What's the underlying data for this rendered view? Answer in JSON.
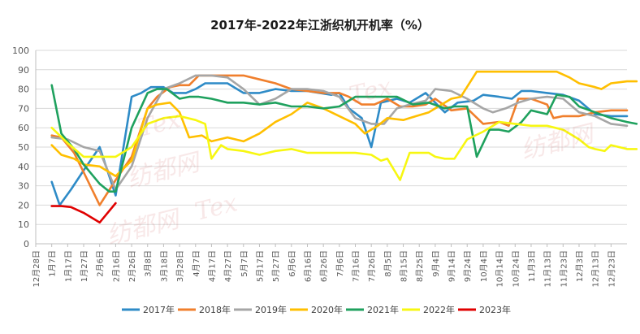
{
  "chart_data": {
    "type": "line",
    "title": "2017年-2022年江浙织机开机率（%）",
    "ylim": [
      0,
      100
    ],
    "yticks": [
      0,
      10,
      20,
      30,
      40,
      50,
      60,
      70,
      80,
      90,
      100
    ],
    "grid": true,
    "legend_position": "bottom",
    "x_labels": [
      "12月28日",
      "1月7日",
      "1月17日",
      "1月27日",
      "2月6日",
      "2月16日",
      "2月26日",
      "3月8日",
      "3月18日",
      "3月28日",
      "4月7日",
      "4月17日",
      "4月27日",
      "5月7日",
      "5月17日",
      "5月27日",
      "6月6日",
      "6月16日",
      "6月26日",
      "7月6日",
      "7月16日",
      "7月26日",
      "8月5日",
      "8月15日",
      "8月25日",
      "9月4日",
      "9月14日",
      "9月24日",
      "10月4日",
      "10月14日",
      "10月24日",
      "11月3日",
      "11月13日",
      "11月23日",
      "12月3日",
      "12月13日",
      "12月23日"
    ],
    "series": [
      {
        "name": "2017年",
        "color": "#2E8BC7",
        "points": [
          [
            1.0,
            32
          ],
          [
            1.5,
            20
          ],
          [
            2.2,
            28
          ],
          [
            3.0,
            38
          ],
          [
            4.0,
            50
          ],
          [
            5.0,
            25
          ],
          [
            6.0,
            76
          ],
          [
            6.6,
            78
          ],
          [
            7.2,
            81
          ],
          [
            8.0,
            81
          ],
          [
            8.6,
            78
          ],
          [
            9.4,
            78
          ],
          [
            10.0,
            80
          ],
          [
            10.6,
            83
          ],
          [
            12.0,
            83
          ],
          [
            13.0,
            78
          ],
          [
            14.0,
            78
          ],
          [
            15.0,
            80
          ],
          [
            16.0,
            79
          ],
          [
            17.0,
            79
          ],
          [
            18.5,
            77
          ],
          [
            19.0,
            78
          ],
          [
            19.6,
            70
          ],
          [
            20.4,
            65
          ],
          [
            21.0,
            50
          ],
          [
            21.6,
            73
          ],
          [
            22.6,
            75
          ],
          [
            23.4,
            73
          ],
          [
            24.4,
            78
          ],
          [
            25.6,
            68
          ],
          [
            26.4,
            73
          ],
          [
            27.4,
            74
          ],
          [
            28.0,
            77
          ],
          [
            29.0,
            76
          ],
          [
            29.8,
            75
          ],
          [
            30.4,
            79
          ],
          [
            31.0,
            79
          ],
          [
            32.0,
            78
          ],
          [
            33.0,
            77
          ],
          [
            34.0,
            74
          ],
          [
            35.0,
            67
          ],
          [
            36.0,
            66
          ],
          [
            37.0,
            66
          ]
        ]
      },
      {
        "name": "2018年",
        "color": "#F07F2C",
        "points": [
          [
            1.0,
            56
          ],
          [
            1.6,
            55
          ],
          [
            2.4,
            47
          ],
          [
            3.0,
            37
          ],
          [
            4.0,
            20
          ],
          [
            5.0,
            33
          ],
          [
            6.0,
            45
          ],
          [
            7.0,
            70
          ],
          [
            7.6,
            76
          ],
          [
            8.4,
            81
          ],
          [
            9.0,
            82
          ],
          [
            9.6,
            82
          ],
          [
            10.2,
            87
          ],
          [
            11.0,
            87
          ],
          [
            12.0,
            87
          ],
          [
            13.0,
            87
          ],
          [
            14.0,
            85
          ],
          [
            15.0,
            83
          ],
          [
            16.0,
            80
          ],
          [
            17.0,
            79
          ],
          [
            18.0,
            78
          ],
          [
            19.0,
            78
          ],
          [
            19.6,
            76
          ],
          [
            20.4,
            72
          ],
          [
            21.2,
            72
          ],
          [
            22.0,
            75
          ],
          [
            22.8,
            71
          ],
          [
            23.6,
            71
          ],
          [
            24.4,
            72
          ],
          [
            25.0,
            75
          ],
          [
            26.0,
            69
          ],
          [
            27.0,
            70
          ],
          [
            28.0,
            62
          ],
          [
            29.0,
            63
          ],
          [
            29.6,
            61
          ],
          [
            30.2,
            75
          ],
          [
            31.0,
            75
          ],
          [
            32.0,
            72
          ],
          [
            32.4,
            65
          ],
          [
            33.0,
            66
          ],
          [
            34.0,
            66
          ],
          [
            35.0,
            68
          ],
          [
            36.0,
            69
          ],
          [
            37.0,
            69
          ]
        ]
      },
      {
        "name": "2019年",
        "color": "#A6A6A6",
        "points": [
          [
            1.0,
            55
          ],
          [
            2.0,
            54
          ],
          [
            3.0,
            50
          ],
          [
            4.0,
            48
          ],
          [
            5.0,
            28
          ],
          [
            6.0,
            40
          ],
          [
            7.0,
            65
          ],
          [
            8.0,
            80
          ],
          [
            9.0,
            83
          ],
          [
            10.0,
            87
          ],
          [
            11.0,
            87
          ],
          [
            12.0,
            86
          ],
          [
            13.0,
            80
          ],
          [
            14.0,
            72
          ],
          [
            15.0,
            75
          ],
          [
            16.0,
            80
          ],
          [
            17.0,
            80
          ],
          [
            18.0,
            79
          ],
          [
            19.0,
            76
          ],
          [
            20.0,
            65
          ],
          [
            21.0,
            62
          ],
          [
            21.8,
            62
          ],
          [
            22.6,
            70
          ],
          [
            23.4,
            72
          ],
          [
            24.4,
            74
          ],
          [
            25.0,
            80
          ],
          [
            26.0,
            79
          ],
          [
            27.0,
            75
          ],
          [
            28.0,
            70
          ],
          [
            28.6,
            68
          ],
          [
            29.4,
            70
          ],
          [
            30.2,
            73
          ],
          [
            31.0,
            75
          ],
          [
            32.0,
            76
          ],
          [
            33.0,
            75
          ],
          [
            34.0,
            68
          ],
          [
            35.0,
            66
          ],
          [
            36.0,
            62
          ],
          [
            37.0,
            61
          ]
        ]
      },
      {
        "name": "2020年",
        "color": "#FFBF00",
        "points": [
          [
            1.0,
            51
          ],
          [
            1.6,
            46
          ],
          [
            2.4,
            44
          ],
          [
            3.0,
            41
          ],
          [
            4.0,
            40
          ],
          [
            5.0,
            35
          ],
          [
            6.0,
            43
          ],
          [
            7.0,
            70
          ],
          [
            7.6,
            72
          ],
          [
            8.4,
            73
          ],
          [
            9.0,
            68
          ],
          [
            9.6,
            55
          ],
          [
            10.4,
            56
          ],
          [
            11.0,
            53
          ],
          [
            12.0,
            55
          ],
          [
            13.0,
            53
          ],
          [
            14.0,
            57
          ],
          [
            15.0,
            63
          ],
          [
            16.0,
            67
          ],
          [
            17.0,
            73
          ],
          [
            18.0,
            70
          ],
          [
            19.0,
            66
          ],
          [
            20.0,
            62
          ],
          [
            20.6,
            57
          ],
          [
            21.4,
            61
          ],
          [
            22.0,
            65
          ],
          [
            23.0,
            64
          ],
          [
            23.8,
            66
          ],
          [
            24.6,
            68
          ],
          [
            25.0,
            70
          ],
          [
            26.0,
            75
          ],
          [
            26.6,
            76
          ],
          [
            27.6,
            89
          ],
          [
            28.6,
            89
          ],
          [
            29.6,
            89
          ],
          [
            30.6,
            89
          ],
          [
            31.6,
            89
          ],
          [
            32.6,
            89
          ],
          [
            33.4,
            86
          ],
          [
            34.0,
            83
          ],
          [
            35.0,
            81
          ],
          [
            35.4,
            80
          ],
          [
            36.0,
            83
          ],
          [
            37.0,
            84
          ],
          [
            37.6,
            84
          ]
        ]
      },
      {
        "name": "2021年",
        "color": "#1FA15E",
        "points": [
          [
            1.0,
            82
          ],
          [
            1.6,
            57
          ],
          [
            2.4,
            49
          ],
          [
            3.0,
            41
          ],
          [
            4.0,
            31
          ],
          [
            4.6,
            27
          ],
          [
            5.0,
            27
          ],
          [
            6.0,
            60
          ],
          [
            7.0,
            78
          ],
          [
            7.6,
            80
          ],
          [
            8.2,
            80
          ],
          [
            9.0,
            75
          ],
          [
            9.6,
            76
          ],
          [
            10.2,
            76
          ],
          [
            11.0,
            75
          ],
          [
            12.0,
            73
          ],
          [
            13.0,
            73
          ],
          [
            14.0,
            72
          ],
          [
            15.0,
            73
          ],
          [
            16.0,
            71
          ],
          [
            17.0,
            71
          ],
          [
            18.0,
            70
          ],
          [
            19.0,
            71
          ],
          [
            20.0,
            76
          ],
          [
            21.0,
            76
          ],
          [
            22.0,
            76
          ],
          [
            22.6,
            76
          ],
          [
            23.6,
            72
          ],
          [
            24.6,
            73
          ],
          [
            25.6,
            70
          ],
          [
            26.2,
            71
          ],
          [
            27.0,
            71
          ],
          [
            27.6,
            45
          ],
          [
            28.4,
            59
          ],
          [
            29.0,
            59
          ],
          [
            29.6,
            58
          ],
          [
            30.4,
            63
          ],
          [
            31.0,
            69
          ],
          [
            32.0,
            67
          ],
          [
            32.6,
            77
          ],
          [
            33.4,
            76
          ],
          [
            34.0,
            71
          ],
          [
            35.0,
            68
          ],
          [
            36.0,
            65
          ],
          [
            37.0,
            63
          ],
          [
            37.6,
            62
          ]
        ]
      },
      {
        "name": "2022年",
        "color": "#F7F711",
        "points": [
          [
            1.0,
            60
          ],
          [
            2.0,
            52
          ],
          [
            3.0,
            45
          ],
          [
            4.0,
            45
          ],
          [
            5.0,
            45
          ],
          [
            6.0,
            50
          ],
          [
            7.0,
            62
          ],
          [
            8.0,
            65
          ],
          [
            9.0,
            66
          ],
          [
            10.0,
            64
          ],
          [
            10.6,
            62
          ],
          [
            11.0,
            44
          ],
          [
            11.6,
            51
          ],
          [
            12.0,
            49
          ],
          [
            13.0,
            48
          ],
          [
            14.0,
            46
          ],
          [
            15.0,
            48
          ],
          [
            16.0,
            49
          ],
          [
            17.0,
            47
          ],
          [
            18.0,
            47
          ],
          [
            19.0,
            47
          ],
          [
            20.0,
            47
          ],
          [
            21.0,
            46
          ],
          [
            21.6,
            43
          ],
          [
            22.0,
            44
          ],
          [
            22.8,
            33
          ],
          [
            23.4,
            47
          ],
          [
            24.0,
            47
          ],
          [
            24.6,
            47
          ],
          [
            25.0,
            45
          ],
          [
            25.6,
            44
          ],
          [
            26.2,
            44
          ],
          [
            27.0,
            54
          ],
          [
            28.0,
            58
          ],
          [
            29.0,
            63
          ],
          [
            30.0,
            62
          ],
          [
            31.0,
            61
          ],
          [
            32.0,
            61
          ],
          [
            33.0,
            59
          ],
          [
            34.0,
            54
          ],
          [
            34.6,
            50
          ],
          [
            35.0,
            49
          ],
          [
            35.6,
            48
          ],
          [
            36.0,
            51
          ],
          [
            37.0,
            49
          ],
          [
            37.6,
            49
          ]
        ]
      },
      {
        "name": "2023年",
        "color": "#E00000",
        "points": [
          [
            1.0,
            19.5
          ],
          [
            1.6,
            19.5
          ],
          [
            2.2,
            19
          ],
          [
            3.0,
            16
          ],
          [
            4.0,
            11
          ],
          [
            5.0,
            21
          ]
        ]
      }
    ]
  },
  "watermark": "Tex",
  "watermark_cn": "纺都网"
}
